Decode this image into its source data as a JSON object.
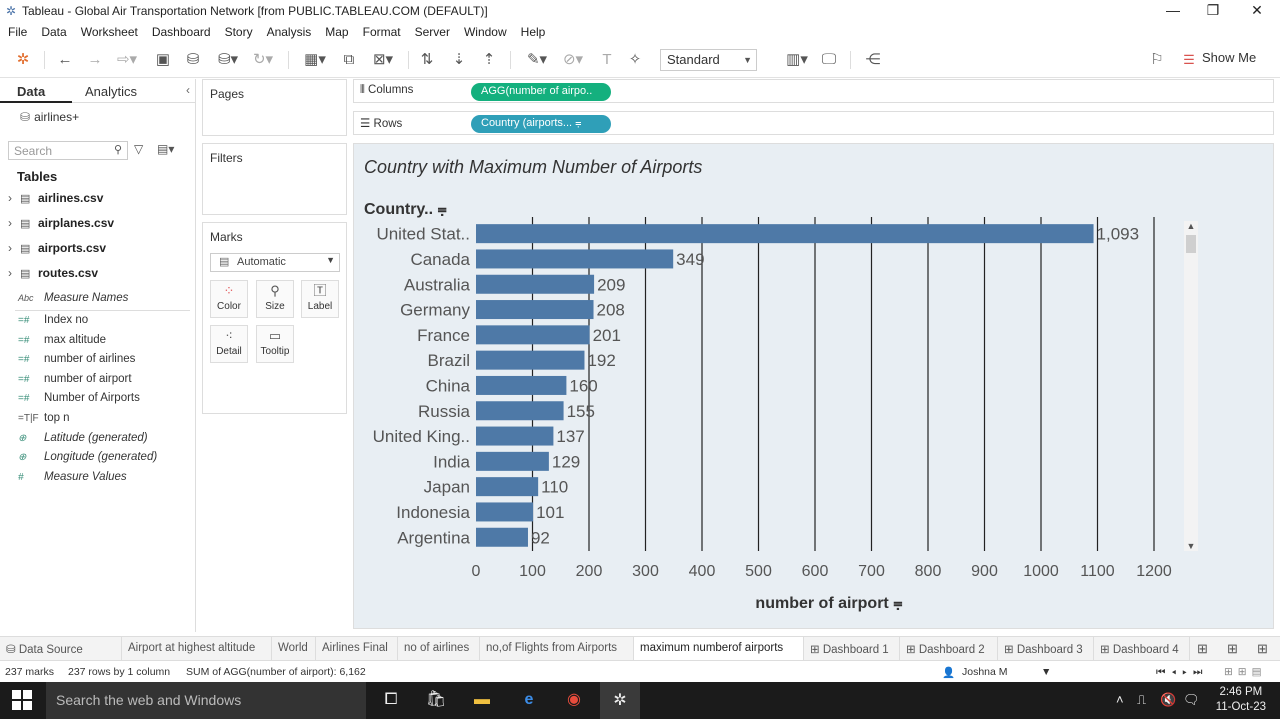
{
  "window": {
    "title": "Tableau - Global Air Transportation Network [from PUBLIC.TABLEAU.COM (DEFAULT)]"
  },
  "menu": [
    "File",
    "Data",
    "Worksheet",
    "Dashboard",
    "Story",
    "Analysis",
    "Map",
    "Format",
    "Server",
    "Window",
    "Help"
  ],
  "toolbar": {
    "fit_select": "Standard",
    "show_me": "Show Me"
  },
  "left_pane": {
    "tab_data": "Data",
    "tab_analytics": "Analytics",
    "data_source": "airlines+",
    "search_placeholder": "Search",
    "tables_heading": "Tables",
    "tables": [
      "airlines.csv",
      "airplanes.csv",
      "airports.csv",
      "routes.csv"
    ],
    "fields": [
      {
        "icon": "Abc",
        "name": "Measure Names",
        "italic": true
      },
      {
        "icon": "=#",
        "name": "Index no",
        "italic": false
      },
      {
        "icon": "=#",
        "name": "max altitude",
        "italic": false
      },
      {
        "icon": "=#",
        "name": "number of airlines",
        "italic": false
      },
      {
        "icon": "=#",
        "name": "number of airport",
        "italic": false
      },
      {
        "icon": "=#",
        "name": "Number of Airports",
        "italic": false
      },
      {
        "icon": "=T|F",
        "name": "top n",
        "italic": false
      },
      {
        "icon": "globe",
        "name": "Latitude (generated)",
        "italic": true
      },
      {
        "icon": "globe",
        "name": "Longitude (generated)",
        "italic": true
      },
      {
        "icon": "#",
        "name": "Measure Values",
        "italic": true
      }
    ]
  },
  "cards": {
    "pages": "Pages",
    "filters": "Filters",
    "marks": "Marks",
    "mark_type": "Automatic",
    "mark_buttons": [
      "Color",
      "Size",
      "Label",
      "Detail",
      "Tooltip"
    ]
  },
  "shelves": {
    "columns_label": "Columns",
    "columns_pill": "AGG(number of airpo..",
    "rows_label": "Rows",
    "rows_pill": "Country (airports..."
  },
  "chart_data": {
    "type": "bar",
    "orientation": "horizontal",
    "title": "Country with Maximum Number of Airports",
    "ylabel": "Country..",
    "xlabel": "number of airport",
    "categories": [
      "United Stat..",
      "Canada",
      "Australia",
      "Germany",
      "France",
      "Brazil",
      "China",
      "Russia",
      "United King..",
      "India",
      "Japan",
      "Indonesia",
      "Argentina"
    ],
    "values": [
      1093,
      349,
      209,
      208,
      201,
      192,
      160,
      155,
      137,
      129,
      110,
      101,
      92
    ],
    "value_labels": [
      "1,093",
      "349",
      "209",
      "208",
      "201",
      "192",
      "160",
      "155",
      "137",
      "129",
      "110",
      "101",
      "92"
    ],
    "xlim": [
      0,
      1200
    ],
    "xticks": [
      0,
      100,
      200,
      300,
      400,
      500,
      600,
      700,
      800,
      900,
      1000,
      1100,
      1200
    ],
    "bar_color": "#4e79a7",
    "grid": true
  },
  "sheet_tabs": {
    "data_source": "Data Source",
    "tabs": [
      "Airport at highest altitude",
      "World",
      "Airlines Final",
      "no of airlines",
      "no,of Flights from Airports",
      "maximum numberof airports",
      "Dashboard 1",
      "Dashboard 2",
      "Dashboard 3",
      "Dashboard 4"
    ],
    "active": "maximum numberof airports"
  },
  "status": {
    "marks": "237 marks",
    "rows_cols": "237 rows by 1 column",
    "sum": "SUM of AGG(number of airport): 6,162",
    "user": "Joshna M"
  },
  "taskbar": {
    "search_placeholder": "Search the web and Windows",
    "time": "2:46 PM",
    "date": "11-Oct-23"
  }
}
